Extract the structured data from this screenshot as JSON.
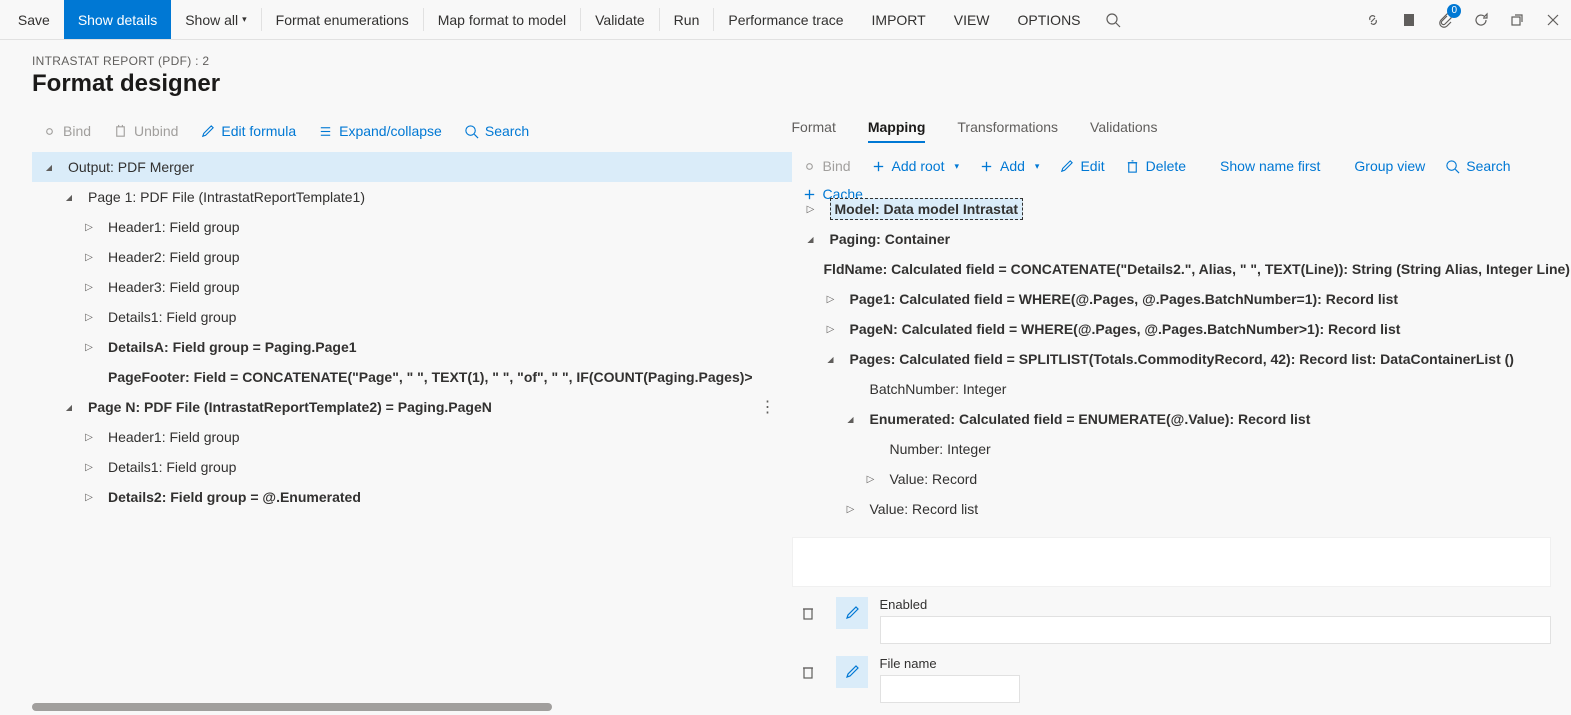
{
  "toolbar": {
    "save": "Save",
    "show_details": "Show details",
    "show_all": "Show all",
    "format_enum": "Format enumerations",
    "map_format": "Map format to model",
    "validate": "Validate",
    "run": "Run",
    "perf_trace": "Performance trace",
    "import": "IMPORT",
    "view": "VIEW",
    "options": "OPTIONS",
    "notif_count": "0"
  },
  "header": {
    "breadcrumb": "INTRASTAT REPORT (PDF) : 2",
    "title": "Format designer"
  },
  "left_actions": {
    "bind": "Bind",
    "unbind": "Unbind",
    "edit_formula": "Edit formula",
    "expand": "Expand/collapse",
    "search": "Search"
  },
  "left_tree": [
    {
      "indent": 0,
      "exp": "down",
      "bold": false,
      "sel": true,
      "text": "Output: PDF Merger"
    },
    {
      "indent": 1,
      "exp": "down",
      "bold": false,
      "sel": false,
      "text": "Page 1: PDF File (IntrastatReportTemplate1)"
    },
    {
      "indent": 2,
      "exp": "right",
      "bold": false,
      "sel": false,
      "text": "Header1: Field group"
    },
    {
      "indent": 2,
      "exp": "right",
      "bold": false,
      "sel": false,
      "text": "Header2: Field group"
    },
    {
      "indent": 2,
      "exp": "right",
      "bold": false,
      "sel": false,
      "text": "Header3: Field group"
    },
    {
      "indent": 2,
      "exp": "right",
      "bold": false,
      "sel": false,
      "text": "Details1: Field group"
    },
    {
      "indent": 2,
      "exp": "right",
      "bold": true,
      "sel": false,
      "text": "DetailsA: Field group = Paging.Page1"
    },
    {
      "indent": 2,
      "exp": "none",
      "bold": true,
      "sel": false,
      "text": "PageFooter: Field = CONCATENATE(\"Page\", \" \", TEXT(1), \" \", \"of\", \" \", IF(COUNT(Paging.Pages)>"
    },
    {
      "indent": 1,
      "exp": "down",
      "bold": true,
      "sel": false,
      "text": "Page N: PDF File (IntrastatReportTemplate2) = Paging.PageN",
      "more": true
    },
    {
      "indent": 2,
      "exp": "right",
      "bold": false,
      "sel": false,
      "text": "Header1: Field group"
    },
    {
      "indent": 2,
      "exp": "right",
      "bold": false,
      "sel": false,
      "text": "Details1: Field group"
    },
    {
      "indent": 2,
      "exp": "right",
      "bold": true,
      "sel": false,
      "text": "Details2: Field group = @.Enumerated"
    }
  ],
  "tabs": {
    "format": "Format",
    "mapping": "Mapping",
    "transformations": "Transformations",
    "validations": "Validations"
  },
  "right_actions": {
    "bind": "Bind",
    "add_root": "Add root",
    "add": "Add",
    "edit": "Edit",
    "delete": "Delete",
    "show_name_first": "Show name first",
    "group_view": "Group view",
    "search": "Search",
    "cache": "Cache"
  },
  "right_tree": [
    {
      "indent": 0,
      "exp": "right",
      "bold": true,
      "hl": true,
      "text": "Model: Data model Intrastat"
    },
    {
      "indent": 0,
      "exp": "down",
      "bold": true,
      "text": "Paging: Container"
    },
    {
      "indent": 1,
      "exp": "none",
      "bold": true,
      "text": "FldName: Calculated field = CONCATENATE(\"Details2.\", Alias, \" \", TEXT(Line)): String (String Alias, Integer Line)"
    },
    {
      "indent": 1,
      "exp": "right",
      "bold": true,
      "text": "Page1: Calculated field = WHERE(@.Pages, @.Pages.BatchNumber=1): Record list"
    },
    {
      "indent": 1,
      "exp": "right",
      "bold": true,
      "text": "PageN: Calculated field = WHERE(@.Pages, @.Pages.BatchNumber>1): Record list"
    },
    {
      "indent": 1,
      "exp": "down",
      "bold": true,
      "text": "Pages: Calculated field = SPLITLIST(Totals.CommodityRecord, 42): Record list: DataContainerList ()"
    },
    {
      "indent": 2,
      "exp": "none",
      "bold": false,
      "text": "BatchNumber: Integer"
    },
    {
      "indent": 2,
      "exp": "down",
      "bold": true,
      "text": "Enumerated: Calculated field = ENUMERATE(@.Value): Record list"
    },
    {
      "indent": 3,
      "exp": "none",
      "bold": false,
      "text": "Number: Integer"
    },
    {
      "indent": 3,
      "exp": "right",
      "bold": false,
      "text": "Value: Record"
    },
    {
      "indent": 2,
      "exp": "right",
      "bold": false,
      "text": "Value: Record list"
    }
  ],
  "props": {
    "enabled": "Enabled",
    "file_name": "File name"
  },
  "layout": {
    "left_indent_unit": 20,
    "left_base_pad": 10,
    "right_indent_unit": 20,
    "right_base_pad": 12,
    "colors": {
      "accent": "#0078d4",
      "selected_bg": "#daecf9",
      "muted": "#a19f9d",
      "text": "#323130"
    }
  }
}
